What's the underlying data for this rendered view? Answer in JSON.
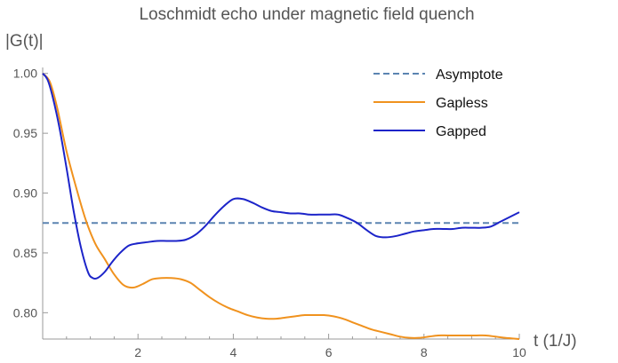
{
  "chart_data": {
    "type": "line",
    "title": "Loschmidt echo under magnetic field quench",
    "xlabel": "t (1/J)",
    "ylabel": "|G(t)|",
    "xlim": [
      0,
      10
    ],
    "ylim": [
      0.778,
      1.005
    ],
    "x_ticks": [
      2,
      4,
      6,
      8,
      10
    ],
    "y_ticks": [
      0.8,
      0.85,
      0.9,
      0.95,
      1.0
    ],
    "y_tick_labels": [
      "0.80",
      "0.85",
      "0.90",
      "0.95",
      "1.00"
    ],
    "grid": false,
    "legend_position": "top-right",
    "series": [
      {
        "name": "Asymptote",
        "style": "dashed",
        "color": "#5b84b1",
        "x": [
          0,
          10
        ],
        "y": [
          0.875,
          0.875
        ]
      },
      {
        "name": "Gapless",
        "style": "solid",
        "color": "#f0921e",
        "x": [
          0,
          0.15,
          0.3,
          0.5,
          0.7,
          0.9,
          1.1,
          1.3,
          1.5,
          1.7,
          1.9,
          2.1,
          2.3,
          2.5,
          2.7,
          2.9,
          3.1,
          3.3,
          3.5,
          3.7,
          3.9,
          4.1,
          4.3,
          4.5,
          4.7,
          4.9,
          5.1,
          5.3,
          5.5,
          5.7,
          5.9,
          6.1,
          6.3,
          6.5,
          6.7,
          6.9,
          7.1,
          7.3,
          7.5,
          7.7,
          7.9,
          8.1,
          8.3,
          8.5,
          8.7,
          8.9,
          9.1,
          9.3,
          9.5,
          9.7,
          10
        ],
        "y": [
          1.0,
          0.993,
          0.972,
          0.935,
          0.905,
          0.878,
          0.858,
          0.845,
          0.832,
          0.823,
          0.821,
          0.824,
          0.828,
          0.829,
          0.829,
          0.828,
          0.825,
          0.819,
          0.813,
          0.808,
          0.804,
          0.801,
          0.798,
          0.796,
          0.795,
          0.795,
          0.796,
          0.797,
          0.798,
          0.798,
          0.798,
          0.797,
          0.795,
          0.792,
          0.789,
          0.786,
          0.784,
          0.782,
          0.78,
          0.779,
          0.779,
          0.78,
          0.781,
          0.781,
          0.781,
          0.781,
          0.781,
          0.781,
          0.78,
          0.779,
          0.778
        ]
      },
      {
        "name": "Gapped",
        "style": "solid",
        "color": "#1c24c9",
        "x": [
          0,
          0.1,
          0.2,
          0.35,
          0.5,
          0.65,
          0.8,
          0.95,
          1.05,
          1.15,
          1.3,
          1.45,
          1.6,
          1.8,
          2.0,
          2.2,
          2.4,
          2.6,
          2.8,
          3.0,
          3.2,
          3.4,
          3.6,
          3.8,
          4.0,
          4.2,
          4.4,
          4.6,
          4.8,
          5.0,
          5.2,
          5.4,
          5.6,
          5.8,
          6.0,
          6.2,
          6.4,
          6.6,
          6.8,
          7.0,
          7.2,
          7.4,
          7.6,
          7.8,
          8.0,
          8.2,
          8.4,
          8.6,
          8.8,
          9.0,
          9.2,
          9.4,
          9.6,
          9.8,
          10
        ],
        "y": [
          1.0,
          0.995,
          0.982,
          0.955,
          0.921,
          0.885,
          0.855,
          0.834,
          0.829,
          0.829,
          0.834,
          0.842,
          0.849,
          0.856,
          0.858,
          0.859,
          0.86,
          0.86,
          0.86,
          0.861,
          0.865,
          0.872,
          0.881,
          0.889,
          0.895,
          0.895,
          0.892,
          0.888,
          0.885,
          0.884,
          0.883,
          0.883,
          0.882,
          0.882,
          0.882,
          0.882,
          0.879,
          0.875,
          0.869,
          0.864,
          0.863,
          0.864,
          0.866,
          0.868,
          0.869,
          0.87,
          0.87,
          0.87,
          0.871,
          0.871,
          0.871,
          0.872,
          0.876,
          0.88,
          0.884
        ]
      }
    ]
  }
}
